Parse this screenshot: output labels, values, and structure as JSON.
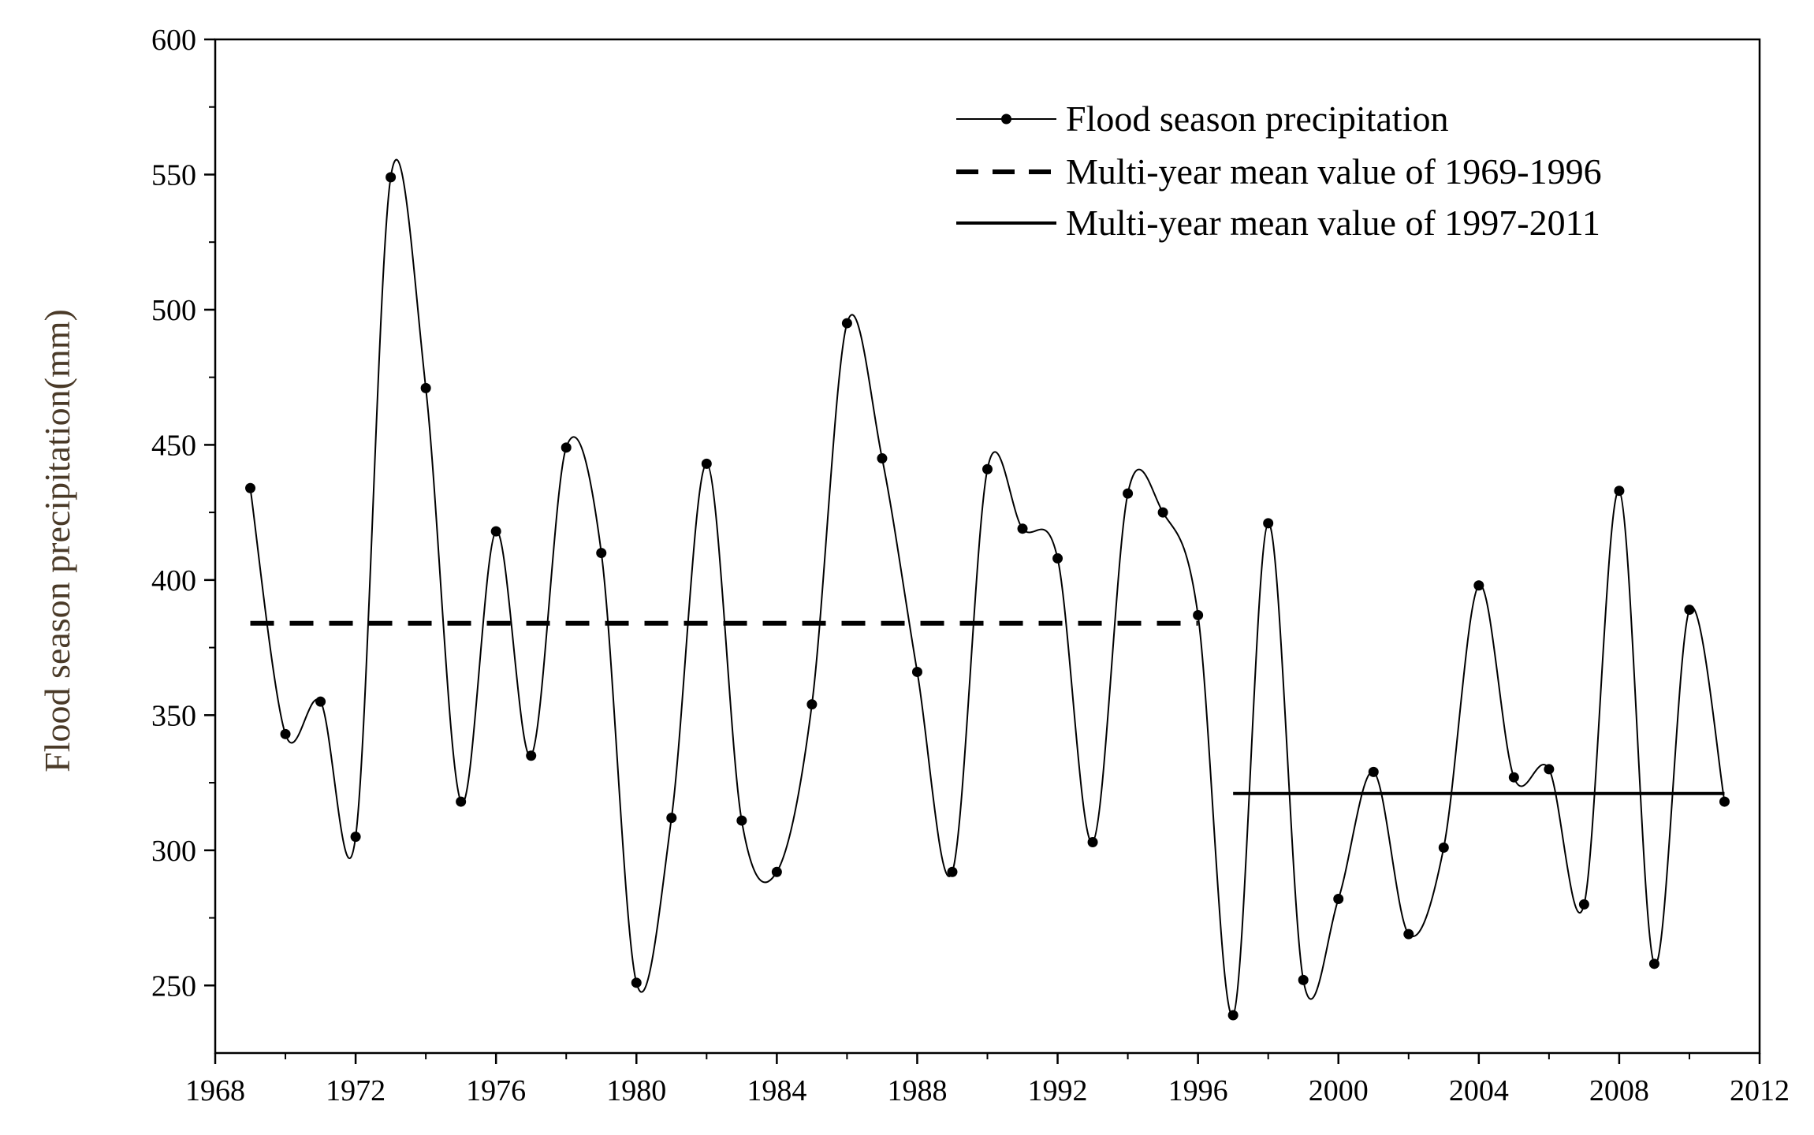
{
  "chart_data": {
    "type": "line",
    "title": "",
    "xlabel": "",
    "ylabel": "Flood season precipitation(mm)",
    "xlim": [
      1968,
      2012
    ],
    "ylim": [
      225,
      600
    ],
    "xticks": [
      1968,
      1972,
      1976,
      1980,
      1984,
      1988,
      1992,
      1996,
      2000,
      2004,
      2008,
      2012
    ],
    "yticks": [
      250,
      300,
      350,
      400,
      450,
      500,
      550,
      600
    ],
    "x_tick_labels": [
      "1968",
      "1972",
      "1976",
      "1980",
      "1984",
      "1988",
      "1992",
      "1996",
      "2000",
      "2004",
      "2008",
      "2012"
    ],
    "y_tick_labels": [
      "250",
      "300",
      "350",
      "400",
      "450",
      "500",
      "550",
      "600"
    ],
    "grid": false,
    "legend_position": "top-right",
    "series": [
      {
        "name": "Flood season precipitation",
        "style": "spline-with-markers",
        "x": [
          1969,
          1970,
          1971,
          1972,
          1973,
          1974,
          1975,
          1976,
          1977,
          1978,
          1979,
          1980,
          1981,
          1982,
          1983,
          1984,
          1985,
          1986,
          1987,
          1988,
          1989,
          1990,
          1991,
          1992,
          1993,
          1994,
          1995,
          1996,
          1997,
          1998,
          1999,
          2000,
          2001,
          2002,
          2003,
          2004,
          2005,
          2006,
          2007,
          2008,
          2009,
          2010,
          2011
        ],
        "values": [
          434,
          343,
          355,
          305,
          549,
          471,
          318,
          418,
          335,
          449,
          410,
          251,
          312,
          443,
          311,
          292,
          354,
          495,
          445,
          366,
          292,
          441,
          419,
          408,
          303,
          432,
          425,
          387,
          239,
          421,
          252,
          282,
          329,
          269,
          301,
          398,
          327,
          330,
          280,
          433,
          258,
          389,
          318
        ]
      },
      {
        "name": "Multi-year mean value of 1969-1996",
        "style": "dashed",
        "x": [
          1969,
          1996
        ],
        "values": [
          384,
          384
        ]
      },
      {
        "name": "Multi-year mean value of 1997-2011",
        "style": "solid",
        "x": [
          1997,
          2011
        ],
        "values": [
          321,
          321
        ]
      }
    ],
    "legend": [
      "Flood season precipitation",
      "Multi-year mean value of 1969-1996",
      "Multi-year mean value of 1997-2011"
    ]
  }
}
